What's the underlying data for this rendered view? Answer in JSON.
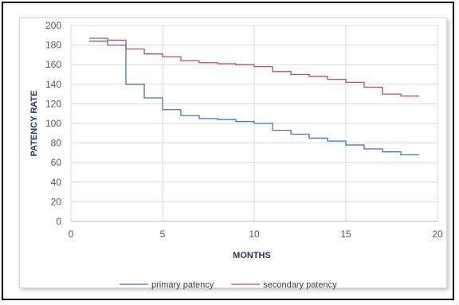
{
  "chart_data": {
    "type": "line",
    "title": "",
    "xlabel": "MONTHS",
    "ylabel": "PATENCY RATE",
    "xlim": [
      0,
      20
    ],
    "ylim": [
      0,
      200
    ],
    "x_ticks": [
      0,
      5,
      10,
      15,
      20
    ],
    "y_ticks": [
      0,
      20,
      40,
      60,
      80,
      100,
      120,
      140,
      160,
      180,
      200
    ],
    "grid": true,
    "legend_position": "bottom",
    "series": [
      {
        "name": "primary patency",
        "color": "#4472c4",
        "step": true,
        "x": [
          1,
          2,
          3,
          4,
          5,
          6,
          7,
          8,
          9,
          10,
          11,
          12,
          13,
          14,
          15,
          16,
          17,
          18,
          19
        ],
        "y": [
          184,
          180,
          140,
          126,
          114,
          108,
          105,
          104,
          102,
          100,
          93,
          89,
          85,
          82,
          78,
          74,
          71,
          68,
          68
        ]
      },
      {
        "name": "secondary patency",
        "color": "#c0504d",
        "step": true,
        "x": [
          1,
          2,
          3,
          4,
          5,
          6,
          7,
          8,
          9,
          10,
          11,
          12,
          13,
          14,
          15,
          16,
          17,
          18,
          19
        ],
        "y": [
          187,
          185,
          176,
          171,
          168,
          164,
          162,
          161,
          160,
          158,
          153,
          150,
          148,
          145,
          142,
          137,
          130,
          128,
          128
        ]
      }
    ]
  }
}
